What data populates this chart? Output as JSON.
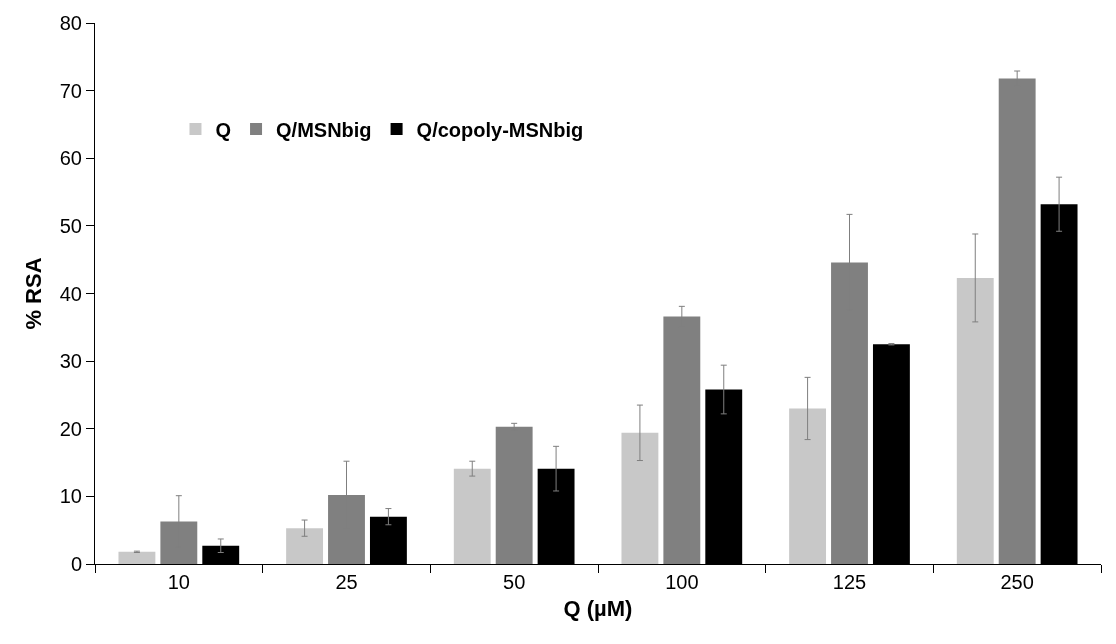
{
  "chart_data": {
    "type": "bar",
    "xlabel": "Q (µM)",
    "ylabel": "% RSA",
    "categories": [
      "10",
      "25",
      "50",
      "100",
      "125",
      "250"
    ],
    "series": [
      {
        "name": "Q",
        "color": "#c8c8c8",
        "values": [
          1.8,
          5.3,
          14.1,
          19.4,
          23.0,
          42.3
        ],
        "errors": [
          0.1,
          1.2,
          1.1,
          4.1,
          4.6,
          6.5
        ]
      },
      {
        "name": "Q/MSNbig",
        "color": "#808080",
        "values": [
          6.3,
          10.2,
          20.3,
          36.6,
          44.6,
          71.8
        ],
        "errors": [
          3.8,
          5.0,
          0.5,
          1.5,
          7.1,
          1.1
        ]
      },
      {
        "name": "Q/copoly-MSNbig",
        "color": "#000000",
        "values": [
          2.7,
          7.0,
          14.1,
          25.8,
          32.5,
          53.2
        ],
        "errors": [
          1.0,
          1.2,
          3.3,
          3.6,
          0.1,
          4.0
        ]
      }
    ],
    "ylim": [
      0,
      80
    ],
    "yticks": [
      0,
      10,
      20,
      30,
      40,
      50,
      60,
      70,
      80
    ],
    "grid": false,
    "legend": "top left"
  }
}
